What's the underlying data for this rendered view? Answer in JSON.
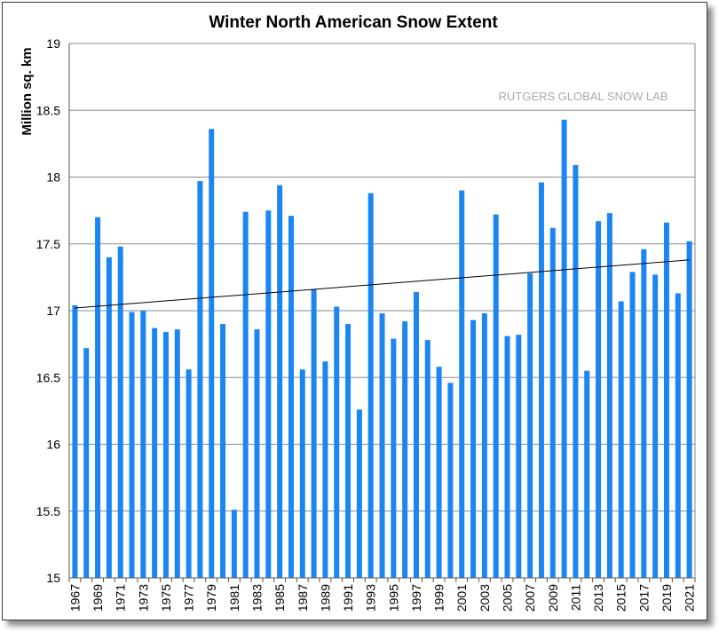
{
  "chart_data": {
    "type": "bar",
    "title": "Winter North American Snow Extent",
    "xlabel": "",
    "ylabel": "Million sq. km",
    "annotation": "RUTGERS GLOBAL SNOW LAB",
    "ylim": [
      15,
      19
    ],
    "yticks": [
      "15",
      "15.5",
      "16",
      "16.5",
      "17",
      "17.5",
      "18",
      "18.5",
      "19"
    ],
    "grid": true,
    "bar_color": "#1b86f2",
    "trend_color": "#000000",
    "trend": {
      "start": 17.02,
      "end": 17.38
    },
    "x": [
      1967,
      1968,
      1969,
      1970,
      1971,
      1972,
      1973,
      1974,
      1975,
      1976,
      1977,
      1978,
      1979,
      1980,
      1981,
      1982,
      1983,
      1984,
      1985,
      1986,
      1987,
      1988,
      1989,
      1990,
      1991,
      1992,
      1993,
      1994,
      1995,
      1996,
      1997,
      1998,
      1999,
      2000,
      2001,
      2002,
      2003,
      2004,
      2005,
      2006,
      2007,
      2008,
      2009,
      2010,
      2011,
      2012,
      2013,
      2014,
      2015,
      2016,
      2017,
      2018,
      2019,
      2020,
      2021
    ],
    "x_tick_labels": [
      "1967",
      "1969",
      "1971",
      "1973",
      "1975",
      "1977",
      "1979",
      "1981",
      "1983",
      "1985",
      "1987",
      "1989",
      "1991",
      "1993",
      "1995",
      "1997",
      "1999",
      "2001",
      "2003",
      "2005",
      "2007",
      "2009",
      "2011",
      "2013",
      "2015",
      "2017",
      "2019",
      "2021"
    ],
    "values": [
      17.04,
      16.72,
      17.7,
      17.4,
      17.48,
      16.99,
      17.0,
      16.87,
      16.84,
      16.86,
      16.56,
      17.97,
      18.36,
      16.9,
      15.51,
      17.74,
      16.86,
      17.75,
      17.94,
      17.71,
      16.56,
      17.16,
      16.62,
      17.03,
      16.9,
      16.26,
      17.88,
      16.98,
      16.79,
      16.92,
      17.14,
      16.78,
      16.58,
      16.46,
      17.9,
      16.93,
      16.98,
      17.72,
      16.81,
      16.82,
      17.28,
      17.96,
      17.62,
      18.43,
      18.09,
      16.55,
      17.67,
      17.73,
      17.07,
      17.29,
      17.46,
      17.27,
      17.66,
      17.13,
      17.52
    ]
  }
}
